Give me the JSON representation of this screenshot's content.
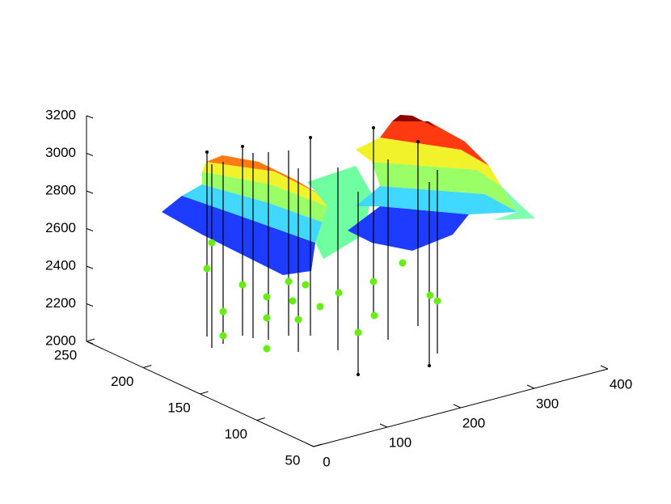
{
  "chart_data": {
    "type": "surface",
    "xlim": [
      0,
      400
    ],
    "xticks": [
      0,
      100,
      200,
      300,
      400
    ],
    "ylim": [
      50,
      250
    ],
    "yticks": [
      50,
      100,
      150,
      200,
      250
    ],
    "zlim": [
      2000,
      3200
    ],
    "zticks": [
      2000,
      2200,
      2400,
      2600,
      2800,
      3000,
      3200
    ]
  }
}
